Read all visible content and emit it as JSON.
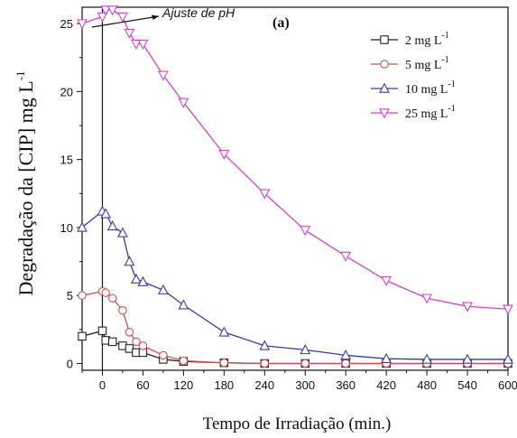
{
  "chart_data": {
    "type": "line",
    "panel_label": "(a)",
    "xlabel": "Tempo de Irradiação (min.)",
    "ylabel": "Degradação da [CIP] mg L",
    "ylabel_sup": "-1",
    "xlim": [
      -30,
      600
    ],
    "ylim": [
      -0.5,
      26.2
    ],
    "xticks": [
      0,
      60,
      120,
      180,
      240,
      300,
      360,
      420,
      480,
      540,
      600
    ],
    "yticks": [
      0,
      5,
      10,
      15,
      20,
      25
    ],
    "grid": false,
    "legend_position": "top-right",
    "annotation": {
      "text": "Ajuste de pH",
      "x": 0,
      "y": 26
    },
    "marker_line_x": 0,
    "series": [
      {
        "name": "2 mg L",
        "sup": "-1",
        "color": "#222222",
        "marker": "square",
        "x": [
          -30,
          0,
          5,
          15,
          30,
          40,
          50,
          60,
          90,
          120,
          180,
          240,
          300,
          360,
          420,
          480,
          540,
          600
        ],
        "y": [
          2.0,
          2.4,
          1.7,
          1.6,
          1.3,
          1.1,
          0.8,
          0.8,
          0.3,
          0.15,
          0.05,
          0.0,
          0.0,
          0.0,
          0.0,
          0.0,
          0.0,
          0.0
        ]
      },
      {
        "name": "5 mg L",
        "sup": "-1",
        "color": "#d45050",
        "marker": "circle",
        "x": [
          -30,
          0,
          5,
          15,
          30,
          40,
          50,
          60,
          90,
          120,
          180,
          240,
          300,
          360,
          420,
          480,
          540,
          600
        ],
        "y": [
          5.0,
          5.3,
          5.2,
          4.8,
          3.9,
          2.3,
          1.6,
          1.3,
          0.6,
          0.2,
          0.05,
          0.0,
          0.0,
          0.0,
          0.0,
          0.0,
          0.0,
          0.0
        ]
      },
      {
        "name": "10 mg L",
        "sup": "-1",
        "color": "#3a3aa8",
        "marker": "triangle-up",
        "x": [
          -30,
          0,
          5,
          15,
          30,
          40,
          50,
          60,
          90,
          120,
          180,
          240,
          300,
          360,
          420,
          480,
          540,
          600
        ],
        "y": [
          10.0,
          11.2,
          11.0,
          10.1,
          9.6,
          7.5,
          6.2,
          6.0,
          5.4,
          4.3,
          2.3,
          1.3,
          1.0,
          0.6,
          0.35,
          0.3,
          0.3,
          0.3
        ]
      },
      {
        "name": "25 mg L",
        "sup": "-1",
        "color": "#cc44cc",
        "marker": "triangle-down",
        "x": [
          -30,
          0,
          5,
          15,
          30,
          40,
          50,
          60,
          90,
          120,
          180,
          240,
          300,
          360,
          420,
          480,
          540,
          600
        ],
        "y": [
          25.0,
          25.5,
          26.0,
          26.0,
          25.5,
          24.3,
          23.5,
          23.5,
          21.2,
          19.2,
          15.4,
          12.5,
          9.8,
          7.9,
          6.1,
          4.8,
          4.2,
          4.0
        ]
      }
    ]
  }
}
